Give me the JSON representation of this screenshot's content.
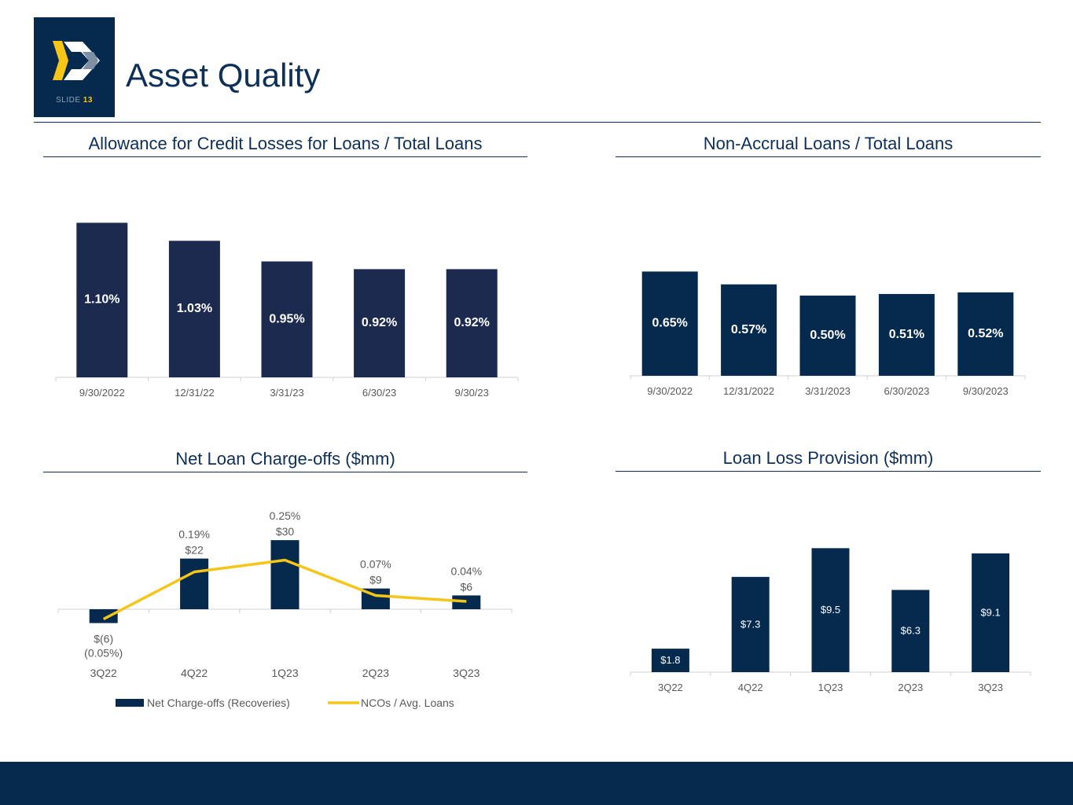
{
  "header": {
    "title": "Asset Quality",
    "slide_label": "SLIDE",
    "slide_number": "13"
  },
  "colors": {
    "navy": "#1b2a4e",
    "dark_navy": "#062a4e",
    "gold": "#f5c518",
    "axis": "#d0d0d0",
    "text": "#595959"
  },
  "chart_data": [
    {
      "type": "bar",
      "title": "Allowance for Credit Losses for Loans / Total Loans",
      "categories": [
        "9/30/2022",
        "12/31/22",
        "3/31/23",
        "6/30/23",
        "9/30/23"
      ],
      "values": [
        1.1,
        1.03,
        0.95,
        0.92,
        0.92
      ],
      "labels": [
        "1.10%",
        "1.03%",
        "0.95%",
        "0.92%",
        "0.92%"
      ],
      "ylim": [
        0.5,
        1.15
      ]
    },
    {
      "type": "bar",
      "title": "Non-Accrual Loans / Total Loans",
      "categories": [
        "9/30/2022",
        "12/31/2022",
        "3/31/2023",
        "6/30/2023",
        "9/30/2023"
      ],
      "values": [
        0.65,
        0.57,
        0.5,
        0.51,
        0.52
      ],
      "labels": [
        "0.65%",
        "0.57%",
        "0.50%",
        "0.51%",
        "0.52%"
      ],
      "ylim": [
        0,
        1.0
      ]
    },
    {
      "type": "bar+line",
      "title": "Net Loan Charge-offs ($mm)",
      "categories": [
        "3Q22",
        "4Q22",
        "1Q23",
        "2Q23",
        "3Q23"
      ],
      "series": [
        {
          "name": "Net Charge-offs (Recoveries)",
          "values": [
            -6,
            22,
            30,
            9,
            6
          ],
          "labels": [
            "$(6)",
            "$22",
            "$30",
            "$9",
            "$6"
          ]
        },
        {
          "name": "NCOs / Avg. Loans",
          "values": [
            -0.05,
            0.19,
            0.25,
            0.07,
            0.04
          ],
          "labels": [
            "(0.05%)",
            "0.19%",
            "0.25%",
            "0.07%",
            "0.04%"
          ]
        }
      ],
      "legend": [
        "Net Charge-offs (Recoveries)",
        "NCOs / Avg. Loans"
      ]
    },
    {
      "type": "bar",
      "title": "Loan Loss Provision ($mm)",
      "categories": [
        "3Q22",
        "4Q22",
        "1Q23",
        "2Q23",
        "3Q23"
      ],
      "values": [
        1.8,
        7.3,
        9.5,
        6.3,
        9.1
      ],
      "labels": [
        "$1.8",
        "$7.3",
        "$9.5",
        "$6.3",
        "$9.1"
      ],
      "ylim": [
        0,
        10
      ]
    }
  ]
}
